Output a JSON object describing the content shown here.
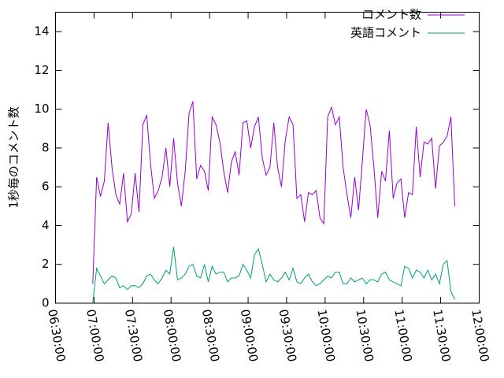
{
  "chart_data": {
    "type": "line",
    "ylabel": "1秒毎のコメント数",
    "ylim": [
      0,
      15
    ],
    "yticks": [
      0,
      2,
      4,
      6,
      8,
      10,
      12,
      14
    ],
    "xlim": [
      23400,
      43200
    ],
    "xticks": [
      {
        "value": 23400,
        "label": "06:30:00"
      },
      {
        "value": 25200,
        "label": "07:00:00"
      },
      {
        "value": 27000,
        "label": "07:30:00"
      },
      {
        "value": 28800,
        "label": "08:00:00"
      },
      {
        "value": 30600,
        "label": "08:30:00"
      },
      {
        "value": 32400,
        "label": "09:00:00"
      },
      {
        "value": 34200,
        "label": "09:30:00"
      },
      {
        "value": 36000,
        "label": "10:00:00"
      },
      {
        "value": 37800,
        "label": "10:30:00"
      },
      {
        "value": 39600,
        "label": "11:00:00"
      },
      {
        "value": 41400,
        "label": "11:30:00"
      },
      {
        "value": 43200,
        "label": "12:00:00"
      }
    ],
    "legend": "upper right",
    "x": [
      25140,
      25320,
      25500,
      25680,
      25860,
      26040,
      26220,
      26400,
      26580,
      26760,
      26940,
      27120,
      27300,
      27480,
      27660,
      27840,
      28020,
      28200,
      28380,
      28560,
      28740,
      28920,
      29100,
      29280,
      29460,
      29640,
      29820,
      30000,
      30180,
      30360,
      30540,
      30720,
      30900,
      31080,
      31260,
      31440,
      31620,
      31800,
      31980,
      32160,
      32340,
      32520,
      32700,
      32880,
      33060,
      33240,
      33420,
      33600,
      33780,
      33960,
      34140,
      34320,
      34500,
      34680,
      34860,
      35040,
      35220,
      35400,
      35580,
      35760,
      35940,
      36120,
      36300,
      36480,
      36660,
      36840,
      37020,
      37200,
      37380,
      37560,
      37740,
      37920,
      38100,
      38280,
      38460,
      38640,
      38820,
      39000,
      39180,
      39360,
      39540,
      39720,
      39900,
      40080,
      40260,
      40440,
      40620,
      40800,
      40980,
      41160,
      41340,
      41520,
      41700,
      41880,
      42060
    ],
    "series": [
      {
        "name": "コメント数",
        "color": "#9400d3",
        "values": [
          1.0,
          6.5,
          5.5,
          6.3,
          9.3,
          7.0,
          5.6,
          5.1,
          6.7,
          4.2,
          4.6,
          6.7,
          4.7,
          9.2,
          9.7,
          7.2,
          5.4,
          5.8,
          6.5,
          8.0,
          6.0,
          8.5,
          6.2,
          5.0,
          6.8,
          9.8,
          10.4,
          6.4,
          7.1,
          6.8,
          5.8,
          9.6,
          9.2,
          8.3,
          6.8,
          5.7,
          7.3,
          7.8,
          6.6,
          9.3,
          9.4,
          8.0,
          9.1,
          9.6,
          7.5,
          6.6,
          7.0,
          9.3,
          7.0,
          6.0,
          8.4,
          9.6,
          9.2,
          5.4,
          5.6,
          4.2,
          5.7,
          5.6,
          5.8,
          4.4,
          4.1,
          9.6,
          10.1,
          9.2,
          9.6,
          7.0,
          5.6,
          4.4,
          6.5,
          4.8,
          7.3,
          10.0,
          9.2,
          7.0,
          4.4,
          6.8,
          6.3,
          8.9,
          5.4,
          6.2,
          6.4,
          4.4,
          5.7,
          5.6,
          9.1,
          6.5,
          8.3,
          8.2,
          8.5,
          5.9,
          8.1,
          8.3,
          8.6,
          9.6,
          5.0
        ]
      },
      {
        "name": "英語コメント",
        "color": "#009e73",
        "values": [
          0,
          1.8,
          1.4,
          1.0,
          1.2,
          1.4,
          1.3,
          0.8,
          0.9,
          0.7,
          0.9,
          0.9,
          0.8,
          1.0,
          1.4,
          1.5,
          1.2,
          1.0,
          1.3,
          1.7,
          1.5,
          2.9,
          1.2,
          1.3,
          1.5,
          1.9,
          2.0,
          1.4,
          1.3,
          2.0,
          1.1,
          1.9,
          1.5,
          1.6,
          1.6,
          1.1,
          1.3,
          1.3,
          1.4,
          2.0,
          1.7,
          1.3,
          2.5,
          2.8,
          2.0,
          1.1,
          1.5,
          1.2,
          1.1,
          1.3,
          1.6,
          1.2,
          1.8,
          1.1,
          1.0,
          1.3,
          1.5,
          1.1,
          0.9,
          1.0,
          1.2,
          1.4,
          1.3,
          1.6,
          1.6,
          1.0,
          1.0,
          1.3,
          1.1,
          1.2,
          1.3,
          1.0,
          1.2,
          1.2,
          1.1,
          1.5,
          1.6,
          1.2,
          1.1,
          1.0,
          0.9,
          1.9,
          1.8,
          1.3,
          1.7,
          1.6,
          1.3,
          1.7,
          1.2,
          1.5,
          1.0,
          2.0,
          2.2,
          0.6,
          0.2
        ]
      }
    ]
  }
}
